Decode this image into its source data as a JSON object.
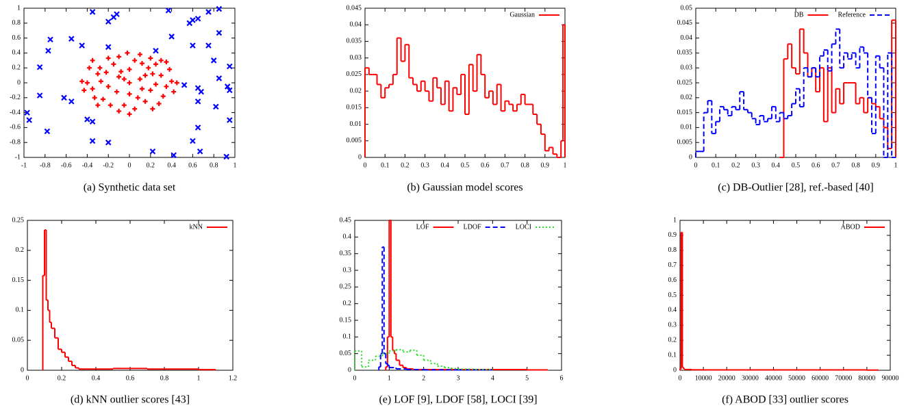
{
  "chart_data": [
    {
      "type": "scatter",
      "caption": "(a) Synthetic data set",
      "xlim": [
        -1,
        1
      ],
      "ylim": [
        -1,
        1
      ],
      "xticks": [
        -1,
        -0.8,
        -0.6,
        -0.4,
        -0.2,
        0,
        0.2,
        0.4,
        0.6,
        0.8,
        1
      ],
      "yticks": [
        -1,
        -0.8,
        -0.6,
        -0.4,
        -0.2,
        0,
        0.2,
        0.4,
        0.6,
        0.8,
        1
      ],
      "series": [
        {
          "color": "#ff0000",
          "marker": "plus",
          "x": [
            0,
            0.1,
            -0.1,
            0.2,
            -0.2,
            0.3,
            -0.3,
            0.05,
            -0.05,
            0.15,
            -0.15,
            0.25,
            -0.25,
            0.35,
            -0.35,
            0.4,
            -0.4,
            0.1,
            -0.1,
            0.2,
            -0.2,
            0.28,
            -0.28,
            0,
            0,
            0.12,
            -0.12,
            0.22,
            -0.22,
            0.32,
            -0.33,
            0.05,
            -0.02,
            0.38,
            -0.38,
            0.18,
            -0.08,
            0.42,
            -0.43,
            0.3,
            -0.18,
            0.08,
            0.25,
            -0.27,
            0.45,
            -0.45,
            0.15,
            -0.05,
            0.35,
            -0.1,
            0.22,
            -0.3,
            0,
            0.12,
            -0.35
          ],
          "values": [
            0,
            0.05,
            0.08,
            -0.1,
            -0.05,
            0.1,
            0.12,
            0.3,
            -0.3,
            -0.25,
            0.25,
            0.25,
            -0.22,
            -0.05,
            -0.08,
            0.02,
            0,
            0.38,
            -0.38,
            0.33,
            0.33,
            -0.28,
            0.2,
            0.18,
            -0.15,
            -0.08,
            -0.12,
            0.12,
            0.14,
            -0.18,
            -0.2,
            -0.35,
            0.4,
            0.18,
            0.2,
            0.2,
            0.15,
            -0.12,
            -0.1,
            0.3,
            -0.3,
            -0.2,
            -0.02,
            0.02,
            0,
            0.02,
            0.1,
            0.05,
            0.28,
            0.35,
            -0.35,
            -0.3,
            -0.42,
            0.26,
            0.3
          ]
        },
        {
          "color": "#0000ff",
          "marker": "cross",
          "x": [
            -0.35,
            -0.2,
            -0.15,
            -0.12,
            0.37,
            0.6,
            0.65,
            0.75,
            0.85,
            0.85,
            0.57,
            0.4,
            0.6,
            0.75,
            0.8,
            0.85,
            0.95,
            0.93,
            0.95,
            0.65,
            0.52,
            0.68,
            0.65,
            0.82,
            0.65,
            0.6,
            0.67,
            0.42,
            0.22,
            0.95,
            0.92,
            -0.97,
            -0.95,
            -0.78,
            -0.85,
            -0.85,
            -0.77,
            -0.75,
            -0.55,
            -0.45,
            -0.2,
            -0.62,
            -0.55,
            -0.4,
            -0.35,
            -0.35,
            -0.2,
            0.25
          ],
          "values": [
            0.95,
            0.82,
            0.88,
            0.92,
            0.97,
            0.84,
            0.86,
            0.95,
            0.99,
            0.67,
            0.8,
            0.62,
            0.5,
            0.5,
            0.3,
            0.06,
            0.22,
            -0.05,
            -0.1,
            -0.07,
            -0.03,
            -0.12,
            -0.25,
            -0.32,
            -0.6,
            -0.78,
            -0.92,
            -0.97,
            -0.92,
            -0.5,
            -0.99,
            -0.4,
            -0.5,
            -0.65,
            -0.17,
            0.21,
            0.43,
            0.58,
            0.59,
            0.5,
            0.48,
            -0.2,
            -0.25,
            -0.49,
            -0.52,
            -0.78,
            -0.8,
            0.43
          ]
        }
      ]
    },
    {
      "type": "histogram",
      "caption": "(b) Gaussian model scores",
      "legend": "top-right",
      "xlim": [
        0,
        1
      ],
      "ylim": [
        0,
        0.045
      ],
      "xticks": [
        0,
        0.1,
        0.2,
        0.3,
        0.4,
        0.5,
        0.6,
        0.7,
        0.8,
        0.9,
        1
      ],
      "yticks": [
        0,
        0.005,
        0.01,
        0.015,
        0.02,
        0.025,
        0.03,
        0.035,
        0.04,
        0.045
      ],
      "series": [
        {
          "name": "Gaussian",
          "color": "#ff0000",
          "dash": "solid",
          "bins": [
            0,
            0.02,
            0.04,
            0.06,
            0.08,
            0.1,
            0.12,
            0.14,
            0.16,
            0.18,
            0.2,
            0.22,
            0.24,
            0.26,
            0.28,
            0.3,
            0.32,
            0.34,
            0.36,
            0.38,
            0.4,
            0.42,
            0.44,
            0.46,
            0.48,
            0.5,
            0.52,
            0.54,
            0.56,
            0.58,
            0.6,
            0.62,
            0.64,
            0.66,
            0.68,
            0.7,
            0.72,
            0.74,
            0.76,
            0.78,
            0.8,
            0.82,
            0.84,
            0.86,
            0.88,
            0.9,
            0.92,
            0.94,
            0.96,
            0.98,
            0.99,
            1
          ],
          "values": [
            0.027,
            0.025,
            0.025,
            0.022,
            0.018,
            0.021,
            0.022,
            0.025,
            0.036,
            0.029,
            0.034,
            0.024,
            0.022,
            0.02,
            0.023,
            0.02,
            0.017,
            0.024,
            0.021,
            0.016,
            0.023,
            0.014,
            0.021,
            0.019,
            0.025,
            0.013,
            0.028,
            0.02,
            0.031,
            0.025,
            0.018,
            0.02,
            0.016,
            0.022,
            0.014,
            0.017,
            0.016,
            0.014,
            0.016,
            0.019,
            0.016,
            0.016,
            0.013,
            0.01,
            0.007,
            0.002,
            0.003,
            0.001,
            0,
            0.005,
            0.04
          ]
        }
      ]
    },
    {
      "type": "histogram",
      "caption": "(c) DB-Outlier [28], ref.-based [40]",
      "legend": "top-right",
      "xlim": [
        0,
        1
      ],
      "ylim": [
        0,
        0.05
      ],
      "xticks": [
        0,
        0.1,
        0.2,
        0.3,
        0.4,
        0.5,
        0.6,
        0.7,
        0.8,
        0.9,
        1
      ],
      "yticks": [
        0,
        0.005,
        0.01,
        0.015,
        0.02,
        0.025,
        0.03,
        0.035,
        0.04,
        0.045,
        0.05
      ],
      "series": [
        {
          "name": "DB",
          "color": "#ff0000",
          "dash": "solid",
          "bins": [
            0.42,
            0.44,
            0.46,
            0.48,
            0.5,
            0.52,
            0.54,
            0.56,
            0.58,
            0.6,
            0.62,
            0.64,
            0.66,
            0.68,
            0.7,
            0.72,
            0.74,
            0.76,
            0.78,
            0.8,
            0.82,
            0.84,
            0.86,
            0.88,
            0.9,
            0.92,
            0.94,
            0.96,
            0.98,
            1
          ],
          "values": [
            0,
            0.033,
            0.038,
            0.03,
            0.028,
            0.043,
            0.035,
            0.027,
            0.03,
            0.022,
            0.03,
            0.012,
            0.03,
            0.015,
            0.023,
            0.018,
            0.025,
            0.025,
            0.025,
            0.018,
            0.02,
            0.015,
            0.02,
            0.018,
            0.017,
            0.013,
            0.01,
            0.003,
            0.046
          ]
        },
        {
          "name": "Reference",
          "color": "#0000ff",
          "dash": "dashed",
          "bins": [
            0,
            0.02,
            0.04,
            0.06,
            0.08,
            0.1,
            0.12,
            0.14,
            0.16,
            0.18,
            0.2,
            0.22,
            0.24,
            0.26,
            0.28,
            0.3,
            0.32,
            0.34,
            0.36,
            0.38,
            0.4,
            0.42,
            0.44,
            0.46,
            0.48,
            0.5,
            0.52,
            0.54,
            0.56,
            0.58,
            0.6,
            0.62,
            0.64,
            0.66,
            0.68,
            0.7,
            0.72,
            0.74,
            0.76,
            0.78,
            0.8,
            0.82,
            0.84,
            0.86,
            0.88,
            0.9,
            0.92,
            0.94,
            0.96,
            0.98,
            1
          ],
          "values": [
            0.002,
            0.002,
            0.015,
            0.019,
            0.008,
            0.012,
            0.017,
            0.016,
            0.014,
            0.017,
            0.016,
            0.022,
            0.016,
            0.015,
            0.013,
            0.011,
            0.014,
            0.012,
            0.013,
            0.017,
            0.012,
            0.015,
            0.013,
            0.014,
            0.018,
            0.023,
            0.017,
            0.03,
            0.027,
            0.03,
            0.027,
            0.034,
            0.036,
            0.029,
            0.038,
            0.043,
            0.03,
            0.035,
            0.033,
            0.035,
            0.03,
            0.037,
            0.035,
            0.02,
            0.008,
            0.034,
            0.03,
            0,
            0.035,
            0
          ]
        }
      ]
    },
    {
      "type": "histogram",
      "caption": "(d) kNN outlier scores [43]",
      "legend": "top-right",
      "xlim": [
        0,
        1.2
      ],
      "ylim": [
        0,
        0.25
      ],
      "xticks": [
        0,
        0.2,
        0.4,
        0.6,
        0.8,
        1,
        1.2
      ],
      "yticks": [
        0,
        0.05,
        0.1,
        0.15,
        0.2,
        0.25
      ],
      "series": [
        {
          "name": "kNN",
          "color": "#ff0000",
          "dash": "solid",
          "bins": [
            0.09,
            0.1,
            0.11,
            0.12,
            0.13,
            0.14,
            0.16,
            0.18,
            0.2,
            0.22,
            0.24,
            0.26,
            0.28,
            0.3,
            0.4,
            0.5,
            0.6,
            0.7,
            0.8,
            0.9,
            1,
            1.1
          ],
          "values": [
            0.158,
            0.234,
            0.117,
            0.1,
            0.08,
            0.07,
            0.054,
            0.035,
            0.03,
            0.022,
            0.015,
            0.008,
            0.004,
            0.002,
            0.002,
            0.003,
            0.003,
            0.002,
            0.002,
            0.002,
            0.001
          ]
        }
      ]
    },
    {
      "type": "histogram",
      "caption": "(e) LOF [9], LDOF [58], LOCI [39]",
      "legend": "top-right",
      "xlim": [
        0,
        6
      ],
      "ylim": [
        0,
        0.45
      ],
      "xticks": [
        0,
        1,
        2,
        3,
        4,
        5,
        6
      ],
      "yticks": [
        0,
        0.05,
        0.1,
        0.15,
        0.2,
        0.25,
        0.3,
        0.35,
        0.4,
        0.45
      ],
      "series": [
        {
          "name": "LOF",
          "color": "#ff0000",
          "dash": "solid",
          "bins": [
            0.9,
            0.95,
            1,
            1.05,
            1.1,
            1.15,
            1.2,
            1.3,
            1.4,
            1.5,
            1.7,
            2,
            3,
            4,
            5,
            5.6
          ],
          "values": [
            0.01,
            0.1,
            0.45,
            0.1,
            0.06,
            0.05,
            0.03,
            0.015,
            0.008,
            0.004,
            0.002,
            0.002,
            0.002,
            0.002,
            0.001
          ]
        },
        {
          "name": "LDOF",
          "color": "#0000ff",
          "dash": "dashed",
          "bins": [
            0.7,
            0.75,
            0.8,
            0.85,
            0.9,
            0.95,
            1,
            1.2,
            1.5,
            2,
            3,
            4
          ],
          "values": [
            0.01,
            0.05,
            0.37,
            0.05,
            0.02,
            0.015,
            0.008,
            0.004,
            0.002,
            0.001,
            0.001
          ]
        },
        {
          "name": "LOCI",
          "color": "#22dd22",
          "dash": "dotted",
          "bins": [
            0,
            0.2,
            0.4,
            0.6,
            0.8,
            1,
            1.2,
            1.4,
            1.6,
            1.8,
            2,
            2.2,
            2.4,
            2.6,
            2.8,
            3,
            3.5,
            4
          ],
          "values": [
            0.058,
            0.01,
            0.03,
            0.042,
            0.05,
            0.058,
            0.062,
            0.055,
            0.06,
            0.045,
            0.03,
            0.02,
            0.012,
            0.008,
            0.005,
            0.003,
            0.002
          ]
        }
      ]
    },
    {
      "type": "histogram",
      "caption": "(f) ABOD [33] outlier scores",
      "legend": "top-right",
      "xlim": [
        0,
        90000
      ],
      "ylim": [
        0,
        1
      ],
      "xticks": [
        0,
        10000,
        20000,
        30000,
        40000,
        50000,
        60000,
        70000,
        80000,
        90000
      ],
      "yticks": [
        0,
        0.1,
        0.2,
        0.3,
        0.4,
        0.5,
        0.6,
        0.7,
        0.8,
        0.9,
        1
      ],
      "series": [
        {
          "name": "ABOD",
          "color": "#ff0000",
          "dash": "solid",
          "bins": [
            0,
            500,
            1000,
            1500,
            2000,
            5000,
            10000,
            20000,
            30000,
            40000,
            50000,
            60000,
            70000,
            80000,
            85000
          ],
          "values": [
            0.01,
            0.92,
            0.02,
            0.01,
            0.005,
            0.003,
            0.002,
            0.002,
            0.002,
            0.002,
            0.002,
            0.002,
            0.002,
            0.001
          ]
        }
      ]
    }
  ]
}
